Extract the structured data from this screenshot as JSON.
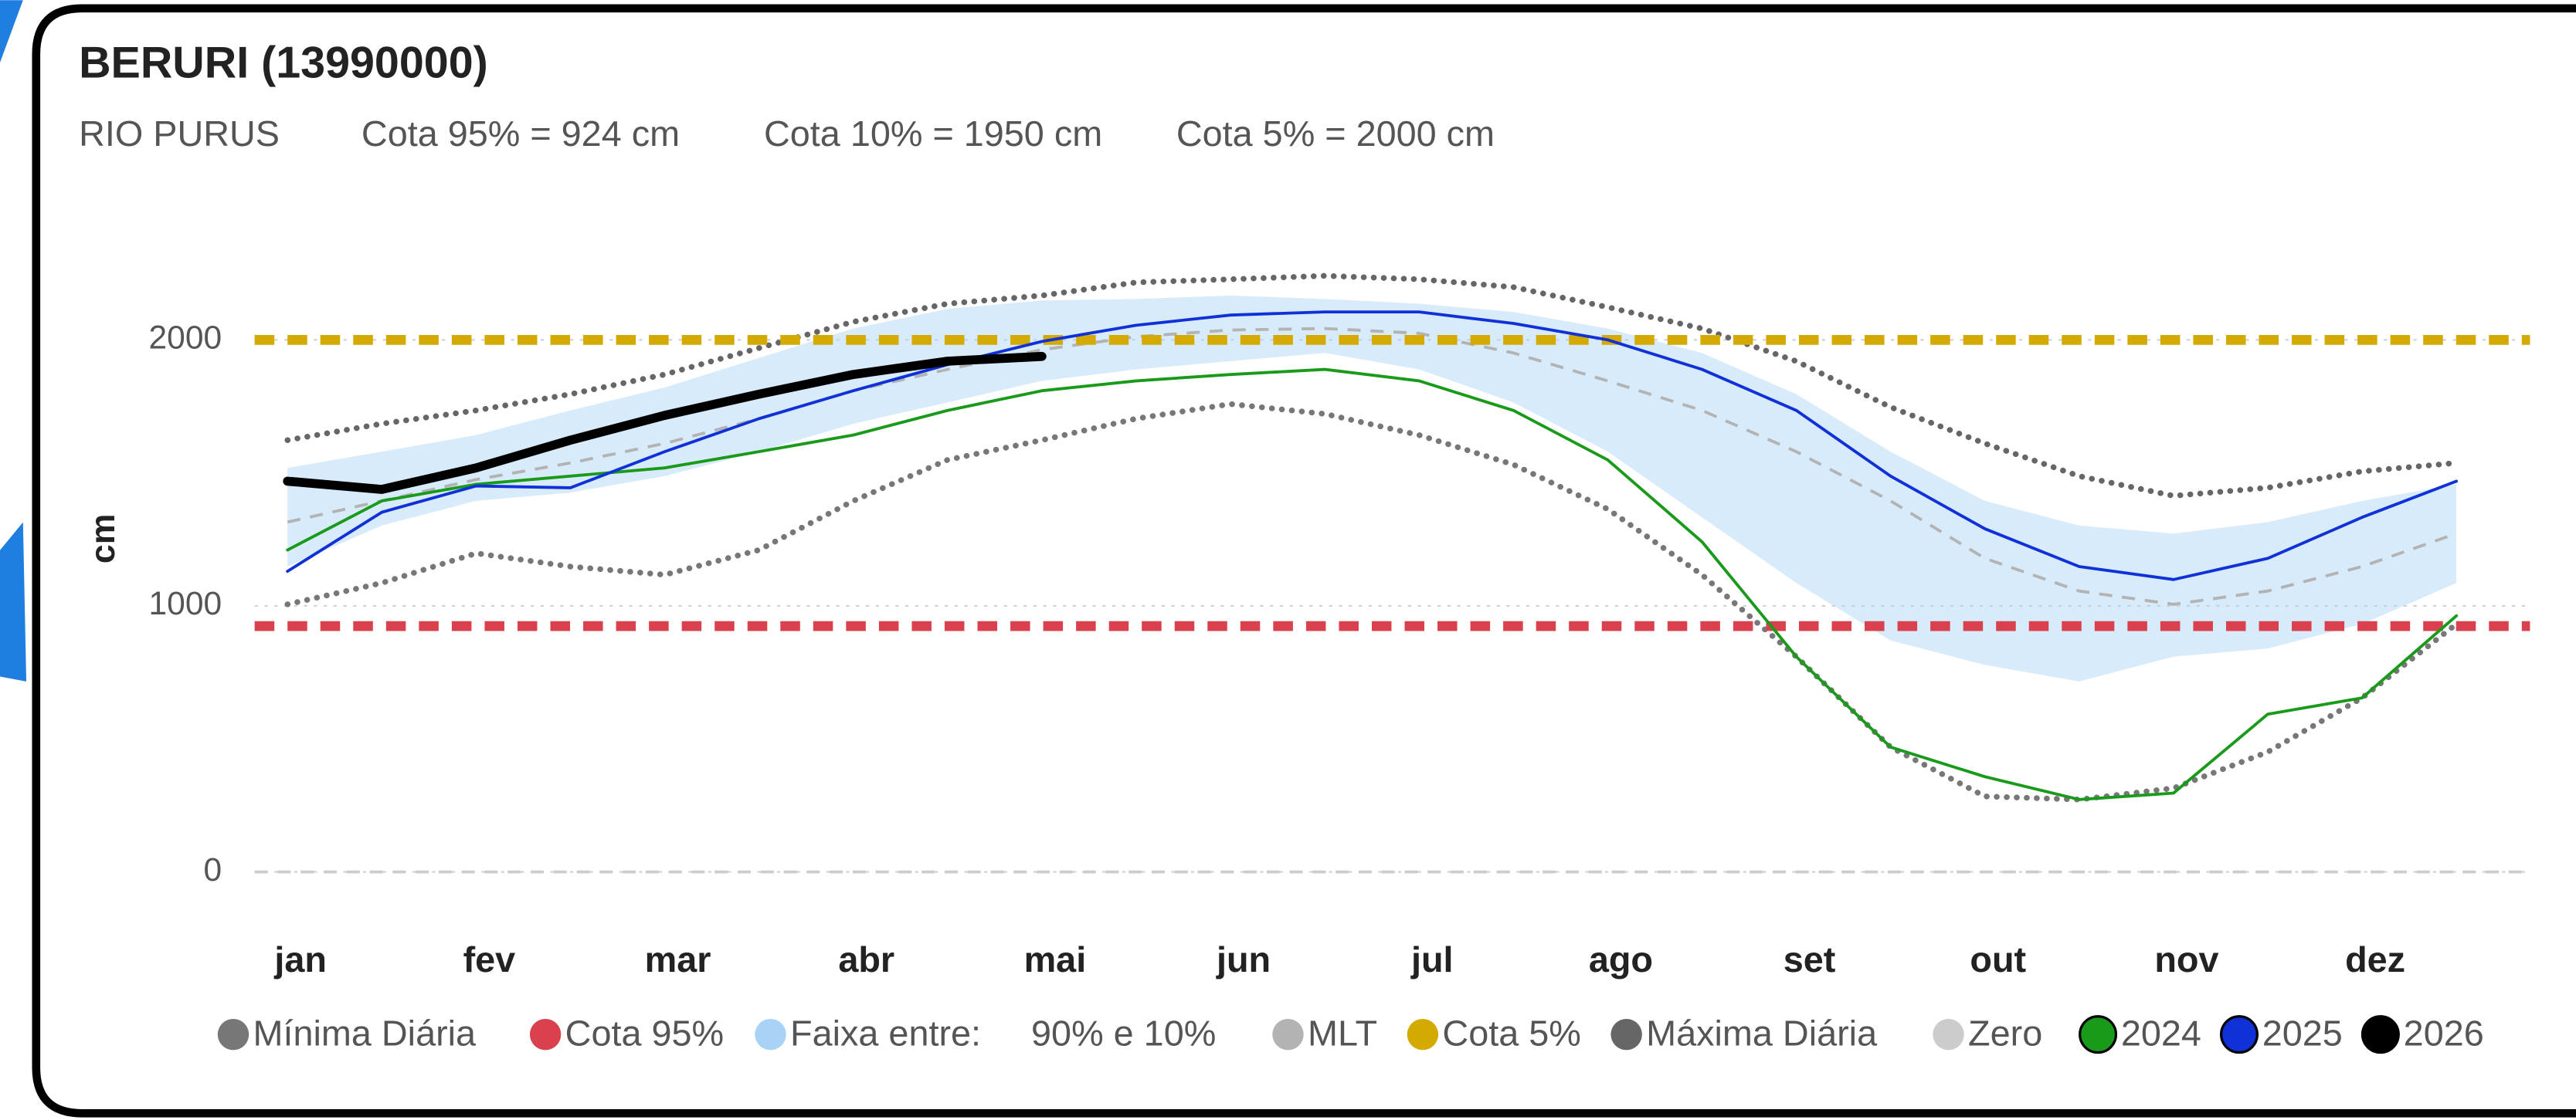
{
  "chart_data": {
    "type": "line",
    "title": "BERURI (13990000)",
    "subtitle": [
      "RIO PURUS",
      "Cota 95% = 924 cm",
      "Cota 10% = 1950 cm",
      "Cota 5% = 2000 cm"
    ],
    "y_label": "cm",
    "categories": [
      "jan",
      null,
      "fev",
      null,
      "mar",
      null,
      "abr",
      null,
      "mai",
      null,
      "jun",
      null,
      "jul",
      null,
      "ago",
      null,
      "set",
      null,
      "out",
      null,
      "nov",
      null,
      "dez",
      null
    ],
    "ylim": [
      0,
      2450
    ],
    "yticks": [
      0,
      1000,
      2000
    ],
    "grid": true,
    "series": [
      {
        "name": "Mínima Diária",
        "color": "#777777",
        "style": "dotted",
        "values": [
          1006,
          1086,
          1198,
          1148,
          1117,
          1210,
          1395,
          1549,
          1623,
          1704,
          1759,
          1722,
          1642,
          1531,
          1364,
          1117,
          809,
          469,
          284,
          272,
          315,
          451,
          654,
          932
        ]
      },
      {
        "name": "Cota 95%",
        "color": "#d9414f",
        "style": "dashed-thick",
        "value": 924
      },
      {
        "name": "Faixa entre:     90% e 10%",
        "color": "#a9d2f7",
        "style": "band",
        "upper": [
          1519,
          1580,
          1642,
          1735,
          1821,
          1932,
          2043,
          2117,
          2148,
          2154,
          2167,
          2154,
          2136,
          2105,
          2043,
          1951,
          1796,
          1580,
          1395,
          1302,
          1272,
          1315,
          1395,
          1457
        ],
        "lower": [
          1148,
          1302,
          1395,
          1426,
          1488,
          1580,
          1685,
          1765,
          1846,
          1889,
          1920,
          1951,
          1889,
          1765,
          1580,
          1333,
          1086,
          870,
          778,
          716,
          809,
          840,
          932,
          1086
        ]
      },
      {
        "name": "MLT",
        "color": "#b3b3b3",
        "style": "dashed",
        "values": [
          1315,
          1395,
          1475,
          1537,
          1611,
          1704,
          1809,
          1889,
          1963,
          2012,
          2037,
          2043,
          2025,
          1951,
          1846,
          1735,
          1580,
          1395,
          1179,
          1056,
          1006,
          1056,
          1148,
          1272
        ]
      },
      {
        "name": "Cota 5%",
        "color": "#d4aa00",
        "style": "dashed-thick",
        "value": 2000
      },
      {
        "name": "Máxima Diária",
        "color": "#666666",
        "style": "dotted",
        "values": [
          1623,
          1685,
          1735,
          1796,
          1870,
          1969,
          2068,
          2136,
          2167,
          2216,
          2228,
          2241,
          2228,
          2198,
          2123,
          2043,
          1920,
          1747,
          1611,
          1488,
          1414,
          1444,
          1506,
          1537
        ]
      },
      {
        "name": "Zero",
        "color": "#cccccc",
        "style": "dashed",
        "value": 0
      },
      {
        "name": "2024",
        "color": "#1a9a1a",
        "style": "solid",
        "values": [
          1210,
          1395,
          1457,
          1488,
          1519,
          1580,
          1642,
          1735,
          1809,
          1846,
          1870,
          1889,
          1846,
          1735,
          1549,
          1241,
          809,
          469,
          358,
          272,
          296,
          593,
          654,
          963
        ]
      },
      {
        "name": "2025",
        "color": "#1030d8",
        "style": "solid",
        "values": [
          1130,
          1352,
          1451,
          1444,
          1580,
          1704,
          1809,
          1907,
          1994,
          2055,
          2093,
          2105,
          2105,
          2062,
          2000,
          1889,
          1735,
          1488,
          1290,
          1148,
          1099,
          1179,
          1333,
          1469
        ]
      },
      {
        "name": "2026",
        "color": "#000000",
        "style": "thick",
        "values": [
          1469,
          1438,
          1519,
          1623,
          1716,
          1796,
          1870,
          1920,
          1938,
          null,
          null,
          null,
          null,
          null,
          null,
          null,
          null,
          null,
          null,
          null,
          null,
          null,
          null,
          null
        ]
      }
    ]
  }
}
